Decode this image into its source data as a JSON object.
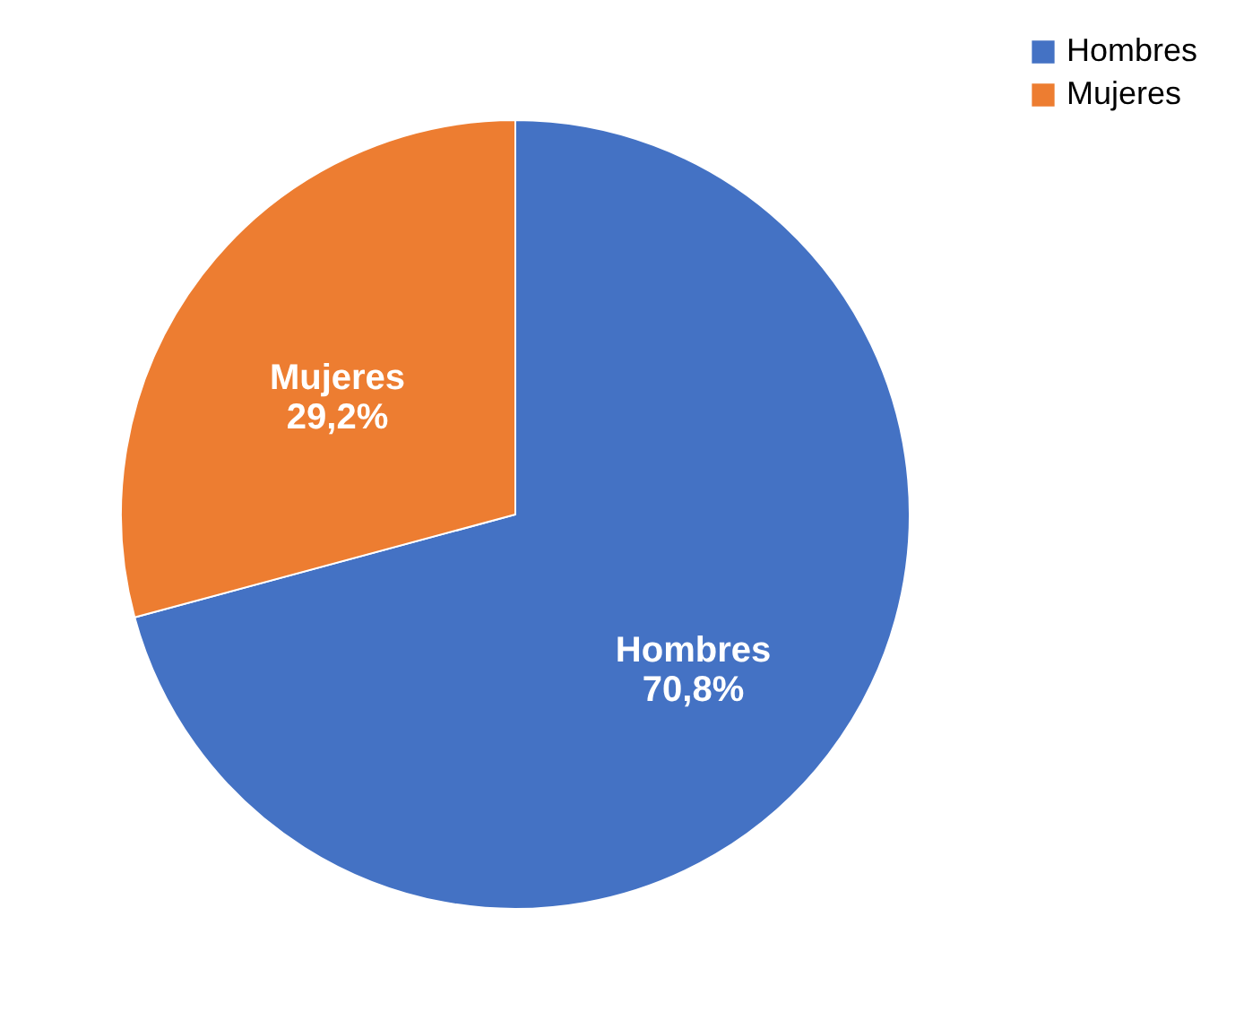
{
  "chart_data": {
    "type": "pie",
    "categories": [
      "Hombres",
      "Mujeres"
    ],
    "values": [
      70.8,
      29.2
    ],
    "colors": [
      "#4472c4",
      "#ed7d31"
    ],
    "value_labels": [
      "70,8%",
      "29,2%"
    ],
    "legend": "right"
  }
}
